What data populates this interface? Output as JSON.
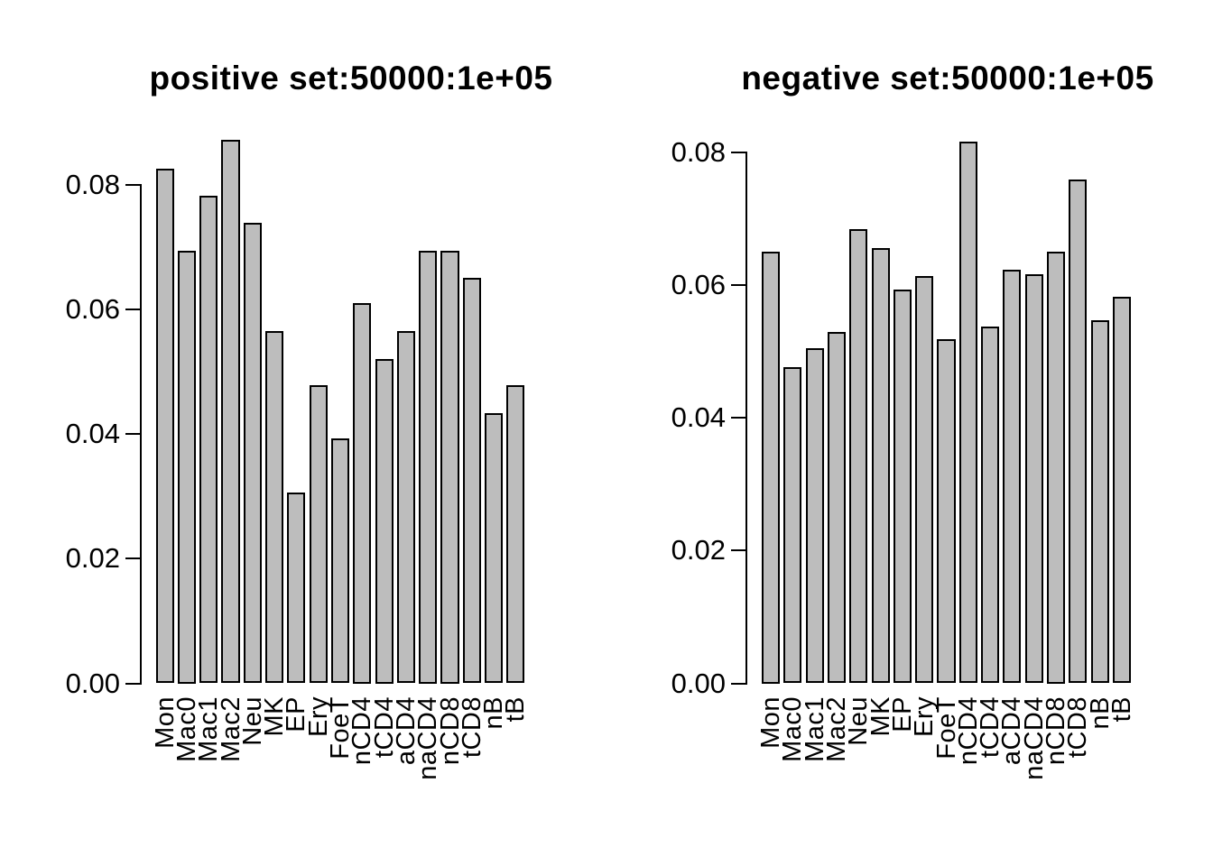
{
  "page": {
    "background": "#ffffff",
    "text_color": "#000000"
  },
  "chart_data": [
    {
      "type": "bar",
      "title": "positive set:50000:1e+05",
      "categories": [
        "Mon",
        "Mac0",
        "Mac1",
        "Mac2",
        "Neu",
        "MK",
        "EP",
        "Ery",
        "FoeT",
        "nCD4",
        "tCD4",
        "aCD4",
        "naCD4",
        "nCD8",
        "tCD8",
        "nB",
        "tB"
      ],
      "values": [
        0.0826,
        0.0695,
        0.0782,
        0.0872,
        0.0739,
        0.0566,
        0.0306,
        0.0479,
        0.0393,
        0.061,
        0.052,
        0.0566,
        0.0695,
        0.0695,
        0.0651,
        0.0434,
        0.0479
      ],
      "xlabel": "",
      "ylabel": "",
      "ylim": [
        0,
        0.0872
      ],
      "yticks": [
        0,
        0.02,
        0.04,
        0.06,
        0.08
      ],
      "ytick_labels": [
        "0.00",
        "0.02",
        "0.04",
        "0.06",
        "0.08"
      ],
      "grid": false,
      "legend": false,
      "bar_fill": "#bdbdbd",
      "bar_border": "#000000",
      "x_label_rotation": 90
    },
    {
      "type": "bar",
      "title": "negative set:50000:1e+05",
      "categories": [
        "Mon",
        "Mac0",
        "Mac1",
        "Mac2",
        "Neu",
        "MK",
        "EP",
        "Ery",
        "FoeT",
        "nCD4",
        "tCD4",
        "aCD4",
        "naCD4",
        "nCD8",
        "tCD8",
        "nB",
        "tB"
      ],
      "values": [
        0.065,
        0.0477,
        0.0505,
        0.0529,
        0.0685,
        0.0656,
        0.0593,
        0.0614,
        0.0518,
        0.0816,
        0.0538,
        0.0623,
        0.0617,
        0.065,
        0.0759,
        0.0547,
        0.0583
      ],
      "xlabel": "",
      "ylabel": "",
      "ylim": [
        0,
        0.0816
      ],
      "yticks": [
        0,
        0.02,
        0.04,
        0.06,
        0.08
      ],
      "ytick_labels": [
        "0.00",
        "0.02",
        "0.04",
        "0.06",
        "0.08"
      ],
      "grid": false,
      "legend": false,
      "bar_fill": "#bdbdbd",
      "bar_border": "#000000",
      "x_label_rotation": 90
    }
  ]
}
